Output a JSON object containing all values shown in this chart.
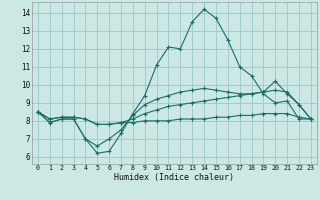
{
  "xlabel": "Humidex (Indice chaleur)",
  "xlim": [
    -0.5,
    23.5
  ],
  "ylim": [
    5.6,
    14.6
  ],
  "xticks": [
    0,
    1,
    2,
    3,
    4,
    5,
    6,
    7,
    8,
    9,
    10,
    11,
    12,
    13,
    14,
    15,
    16,
    17,
    18,
    19,
    20,
    21,
    22,
    23
  ],
  "yticks": [
    6,
    7,
    8,
    9,
    10,
    11,
    12,
    13,
    14
  ],
  "bg_color": "#cbe8e5",
  "grid_color": "#a0ccc8",
  "line_color": "#1a6e63",
  "line1_y": [
    8.5,
    7.9,
    8.1,
    8.1,
    7.0,
    6.2,
    6.3,
    7.3,
    8.4,
    9.4,
    11.1,
    12.1,
    12.0,
    13.5,
    14.2,
    13.7,
    12.5,
    11.0,
    10.5,
    9.5,
    9.0,
    9.1,
    8.1,
    8.1
  ],
  "line2_y": [
    8.5,
    7.9,
    8.1,
    8.1,
    7.0,
    6.6,
    7.0,
    7.5,
    8.3,
    8.9,
    9.2,
    9.4,
    9.6,
    9.7,
    9.8,
    9.7,
    9.6,
    9.5,
    9.5,
    9.6,
    10.2,
    9.5,
    8.9,
    8.1
  ],
  "line3_y": [
    8.5,
    8.1,
    8.2,
    8.2,
    8.1,
    7.8,
    7.8,
    7.9,
    8.1,
    8.4,
    8.6,
    8.8,
    8.9,
    9.0,
    9.1,
    9.2,
    9.3,
    9.4,
    9.5,
    9.6,
    9.7,
    9.6,
    8.9,
    8.1
  ],
  "line4_y": [
    8.5,
    8.1,
    8.2,
    8.2,
    8.1,
    7.8,
    7.8,
    7.9,
    7.9,
    8.0,
    8.0,
    8.0,
    8.1,
    8.1,
    8.1,
    8.2,
    8.2,
    8.3,
    8.3,
    8.4,
    8.4,
    8.4,
    8.2,
    8.1
  ]
}
